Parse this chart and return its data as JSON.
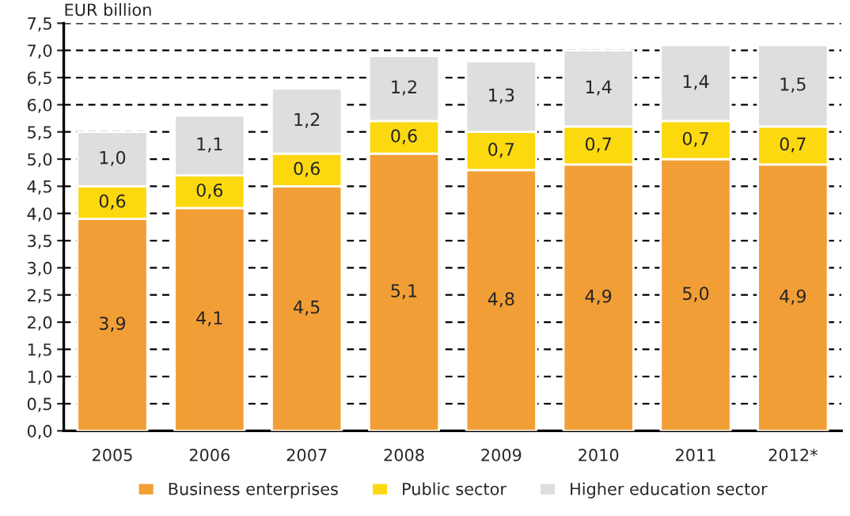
{
  "chart_data": {
    "type": "bar",
    "stacked": true,
    "ylabel": "EUR billion",
    "categories": [
      "2005",
      "2006",
      "2007",
      "2008",
      "2009",
      "2010",
      "2011",
      "2012*"
    ],
    "series": [
      {
        "name": "Business enterprises",
        "color": "#f29e36",
        "values": [
          3.9,
          4.1,
          4.5,
          5.1,
          4.8,
          4.9,
          5.0,
          4.9
        ],
        "value_labels": [
          "3,9",
          "4,1",
          "4,5",
          "5,1",
          "4,8",
          "4,9",
          "5,0",
          "4,9"
        ]
      },
      {
        "name": "Public sector",
        "color": "#fcd90f",
        "values": [
          0.6,
          0.6,
          0.6,
          0.6,
          0.7,
          0.7,
          0.7,
          0.7
        ],
        "value_labels": [
          "0,6",
          "0,6",
          "0,6",
          "0,6",
          "0,7",
          "0,7",
          "0,7",
          "0,7"
        ]
      },
      {
        "name": "Higher education sector",
        "color": "#dedede",
        "values": [
          1.0,
          1.1,
          1.2,
          1.2,
          1.3,
          1.4,
          1.4,
          1.5
        ],
        "value_labels": [
          "1,0",
          "1,1",
          "1,2",
          "1,2",
          "1,3",
          "1,4",
          "1,4",
          "1,5"
        ]
      }
    ],
    "ylim": [
      0,
      7.5
    ],
    "yticks": [
      {
        "value": 0,
        "label": "0,0"
      },
      {
        "value": 0.5,
        "label": "0,5"
      },
      {
        "value": 1,
        "label": "1,0"
      },
      {
        "value": 1.5,
        "label": "1,5"
      },
      {
        "value": 2,
        "label": "2,0"
      },
      {
        "value": 2.5,
        "label": "2,5"
      },
      {
        "value": 3,
        "label": "3,0"
      },
      {
        "value": 3.5,
        "label": "3,5"
      },
      {
        "value": 4,
        "label": "4,0"
      },
      {
        "value": 4.5,
        "label": "4,5"
      },
      {
        "value": 5,
        "label": "5,0"
      },
      {
        "value": 5.5,
        "label": "5,5"
      },
      {
        "value": 6,
        "label": "6,0"
      },
      {
        "value": 6.5,
        "label": "6,5"
      },
      {
        "value": 7,
        "label": "7,0"
      },
      {
        "value": 7.5,
        "label": "7,5"
      }
    ],
    "grid": "y",
    "legend": "bottom"
  }
}
